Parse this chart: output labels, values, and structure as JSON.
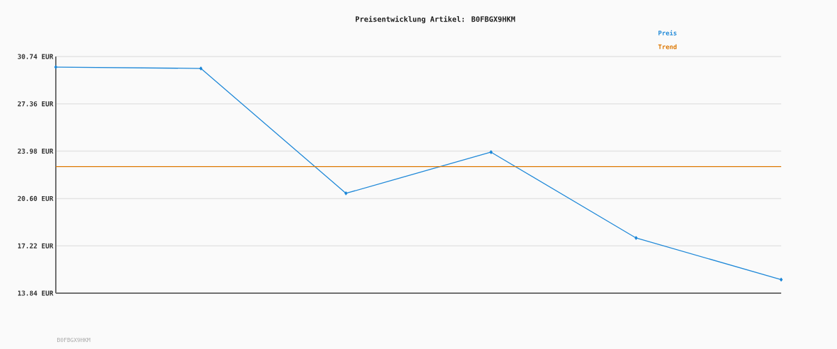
{
  "chart_data": {
    "type": "line",
    "title": "Preisentwicklung Artikel: B0FBGX9HKM",
    "categories": [
      null,
      null,
      null,
      null,
      null,
      null
    ],
    "series": [
      {
        "name": "Preis",
        "color": "#1e88d8",
        "marker": "diamond",
        "values": [
          29.99,
          29.89,
          20.97,
          23.91,
          17.78,
          14.81
        ]
      },
      {
        "name": "Trend",
        "color": "#dd7700",
        "marker": "none",
        "values": [
          22.88,
          22.88,
          22.88,
          22.88,
          22.88,
          22.88
        ]
      }
    ],
    "ylim": [
      13.84,
      30.74
    ],
    "yticks": [
      {
        "value": 13.84,
        "label": "13.84 EUR"
      },
      {
        "value": 17.22,
        "label": "17.22 EUR"
      },
      {
        "value": 20.6,
        "label": "20.60 EUR"
      },
      {
        "value": 23.98,
        "label": "23.98 EUR"
      },
      {
        "value": 27.36,
        "label": "27.36 EUR"
      },
      {
        "value": 30.74,
        "label": "30.74 EUR"
      }
    ],
    "grid": "y",
    "legend": "top right",
    "annotations": [
      "B0FBGX9HKM"
    ]
  }
}
